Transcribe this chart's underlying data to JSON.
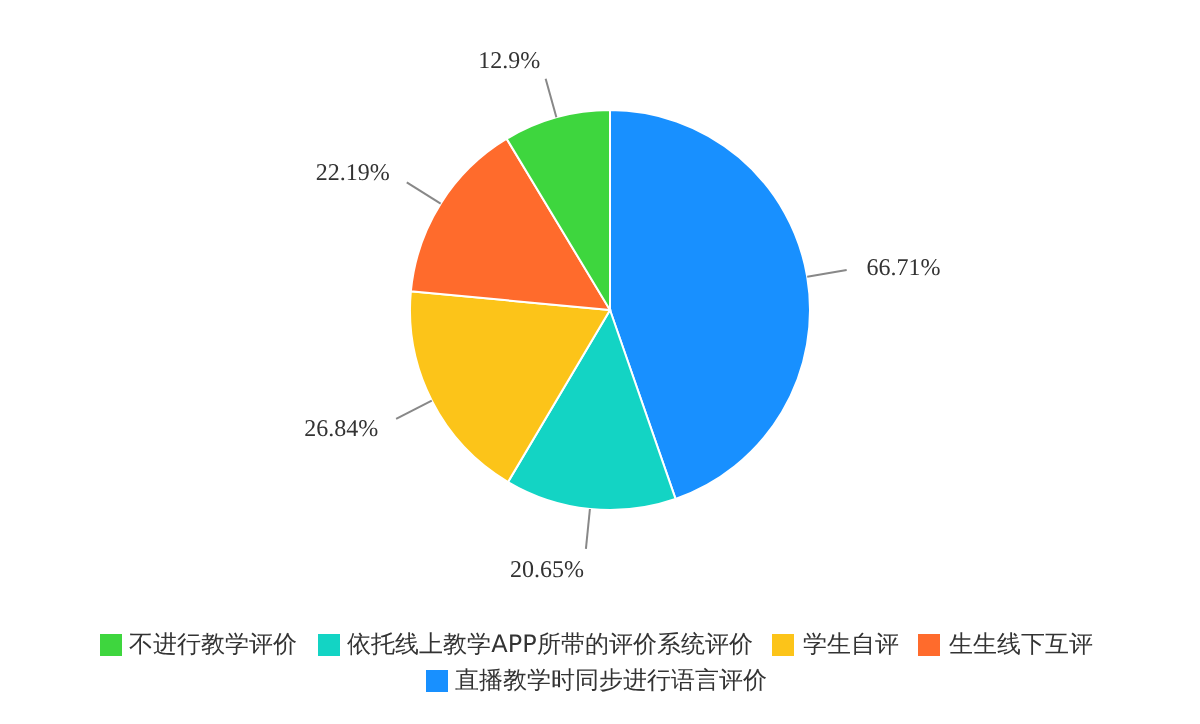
{
  "chart_data": {
    "type": "pie",
    "categories": [
      "直播教学时同步进行语言评价",
      "依托线上教学APP所带的评价系统评价",
      "学生自评",
      "生生线下互评",
      "不进行教学评价"
    ],
    "values": [
      66.71,
      20.65,
      26.84,
      22.19,
      12.9
    ],
    "colors": [
      "#1890ff",
      "#13d4c4",
      "#fcc419",
      "#ff6b2c",
      "#3ed63e"
    ],
    "value_labels": [
      "66.71%",
      "20.65%",
      "26.84%",
      "22.19%",
      "12.9%"
    ],
    "legend": "bottom"
  }
}
